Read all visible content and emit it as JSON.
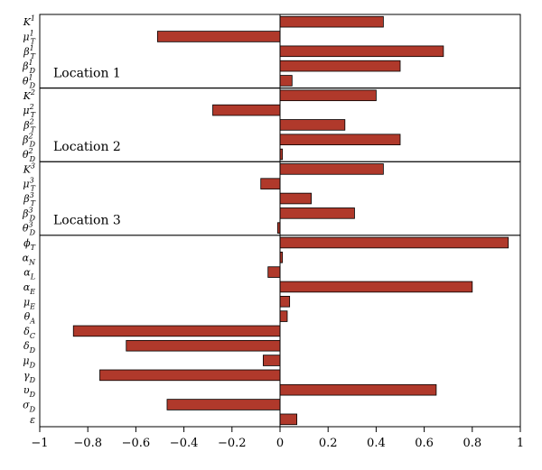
{
  "chart_data": {
    "type": "bar",
    "orientation": "horizontal",
    "categories": [
      {
        "base": "K",
        "sub": "",
        "sup": "1"
      },
      {
        "base": "μ",
        "sub": "T",
        "sup": "1"
      },
      {
        "base": "β",
        "sub": "T",
        "sup": "1"
      },
      {
        "base": "β",
        "sub": "D",
        "sup": "1"
      },
      {
        "base": "θ",
        "sub": "D",
        "sup": "1"
      },
      {
        "base": "K",
        "sub": "",
        "sup": "2"
      },
      {
        "base": "μ",
        "sub": "T",
        "sup": "2"
      },
      {
        "base": "β",
        "sub": "T",
        "sup": "2"
      },
      {
        "base": "β",
        "sub": "D",
        "sup": "2"
      },
      {
        "base": "θ",
        "sub": "D",
        "sup": "2"
      },
      {
        "base": "K",
        "sub": "",
        "sup": "3"
      },
      {
        "base": "μ",
        "sub": "T",
        "sup": "3"
      },
      {
        "base": "β",
        "sub": "T",
        "sup": "3"
      },
      {
        "base": "β",
        "sub": "D",
        "sup": "3"
      },
      {
        "base": "θ",
        "sub": "D",
        "sup": "3"
      },
      {
        "base": "ϕ",
        "sub": "T",
        "sup": ""
      },
      {
        "base": "α",
        "sub": "N",
        "sup": ""
      },
      {
        "base": "α",
        "sub": "L",
        "sup": ""
      },
      {
        "base": "α",
        "sub": "E",
        "sup": ""
      },
      {
        "base": "μ",
        "sub": "E",
        "sup": ""
      },
      {
        "base": "θ",
        "sub": "A",
        "sup": ""
      },
      {
        "base": "δ",
        "sub": "C",
        "sup": ""
      },
      {
        "base": "δ",
        "sub": "D",
        "sup": ""
      },
      {
        "base": "μ",
        "sub": "D",
        "sup": ""
      },
      {
        "base": "γ",
        "sub": "D",
        "sup": ""
      },
      {
        "base": "υ",
        "sub": "D",
        "sup": ""
      },
      {
        "base": "σ",
        "sub": "D",
        "sup": ""
      },
      {
        "base": "ε",
        "sub": "",
        "sup": ""
      }
    ],
    "values": [
      0.43,
      -0.51,
      0.68,
      0.5,
      0.05,
      0.4,
      -0.28,
      0.27,
      0.5,
      0.01,
      0.43,
      -0.08,
      0.13,
      0.31,
      -0.01,
      0.95,
      0.01,
      -0.05,
      0.8,
      0.04,
      0.03,
      -0.86,
      -0.64,
      -0.07,
      -0.75,
      0.65,
      -0.47,
      0.07
    ],
    "xlim": [
      -1,
      1
    ],
    "xticks": [
      "−1",
      "−0.8",
      "−0.6",
      "−0.4",
      "−0.2",
      "0",
      "0.2",
      "0.4",
      "0.6",
      "0.8",
      "1"
    ],
    "groups": [
      {
        "label": "Location 1"
      },
      {
        "label": "Location 2"
      },
      {
        "label": "Location 3"
      }
    ],
    "colors": {
      "bar": "#b0392b",
      "bar_stroke": "#000000"
    },
    "grid": false,
    "legend": "none"
  }
}
